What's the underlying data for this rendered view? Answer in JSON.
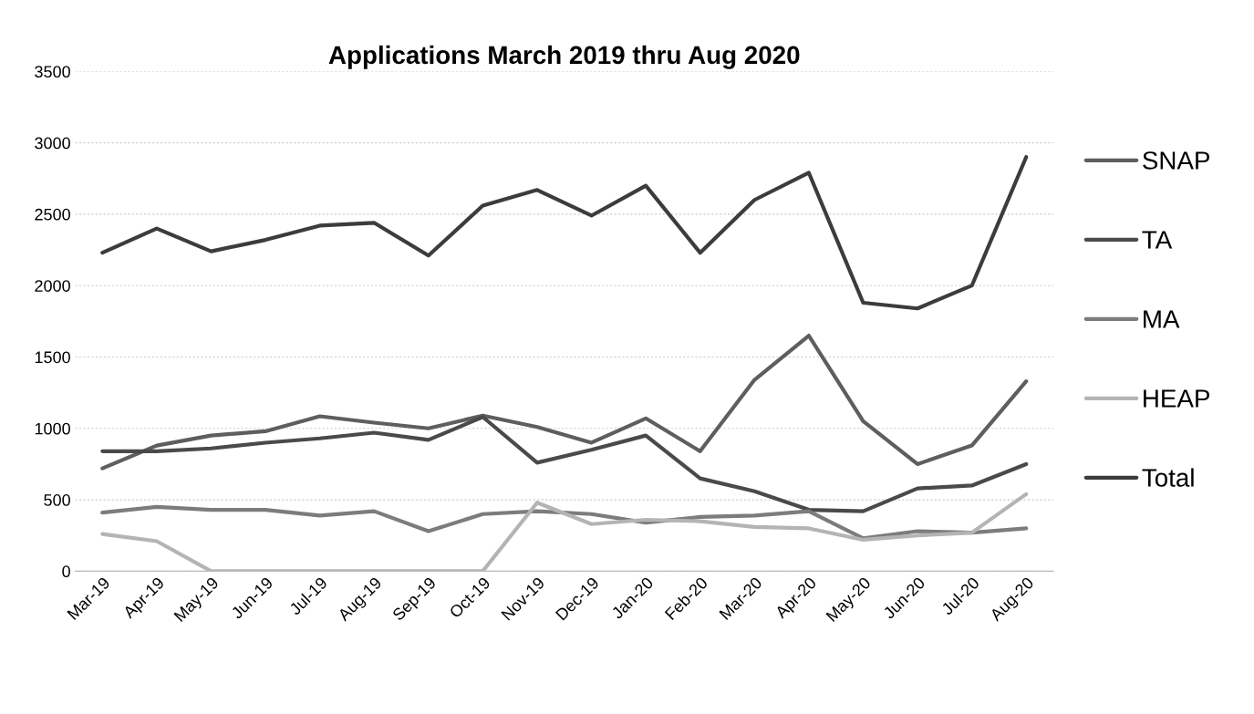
{
  "chart_data": {
    "type": "line",
    "title": "Applications March 2019 thru Aug 2020",
    "categories": [
      "Mar-19",
      "Apr-19",
      "May-19",
      "Jun-19",
      "Jul-19",
      "Aug-19",
      "Sep-19",
      "Oct-19",
      "Nov-19",
      "Dec-19",
      "Jan-20",
      "Feb-20",
      "Mar-20",
      "Apr-20",
      "May-20",
      "Jun-20",
      "Jul-20",
      "Aug-20"
    ],
    "series": [
      {
        "name": "SNAP",
        "color": "#5e5e5e",
        "values": [
          720,
          880,
          950,
          980,
          1085,
          1040,
          1000,
          1090,
          1010,
          900,
          1070,
          840,
          1340,
          1650,
          1050,
          750,
          880,
          1330
        ]
      },
      {
        "name": "TA",
        "color": "#4a4a4a",
        "values": [
          840,
          840,
          860,
          900,
          930,
          970,
          920,
          1080,
          760,
          850,
          950,
          650,
          560,
          430,
          420,
          580,
          600,
          750
        ]
      },
      {
        "name": "MA",
        "color": "#7c7c7c",
        "values": [
          410,
          450,
          430,
          430,
          390,
          420,
          280,
          400,
          420,
          400,
          340,
          380,
          390,
          420,
          230,
          280,
          270,
          300
        ]
      },
      {
        "name": "HEAP",
        "color": "#b4b4b4",
        "values": [
          260,
          210,
          0,
          0,
          0,
          0,
          0,
          0,
          480,
          330,
          360,
          350,
          310,
          300,
          220,
          250,
          270,
          540
        ]
      },
      {
        "name": "Total",
        "color": "#3c3c3c",
        "values": [
          2230,
          2400,
          2240,
          2320,
          2420,
          2440,
          2210,
          2560,
          2670,
          2490,
          2700,
          2230,
          2600,
          2790,
          1880,
          1840,
          2000,
          2900
        ]
      }
    ],
    "ylim": [
      0,
      3500
    ],
    "yticks": [
      0,
      500,
      1000,
      1500,
      2000,
      2500,
      3000,
      3500
    ],
    "grid": "y",
    "legend": "right",
    "marker": "none",
    "line_style": "solid"
  }
}
